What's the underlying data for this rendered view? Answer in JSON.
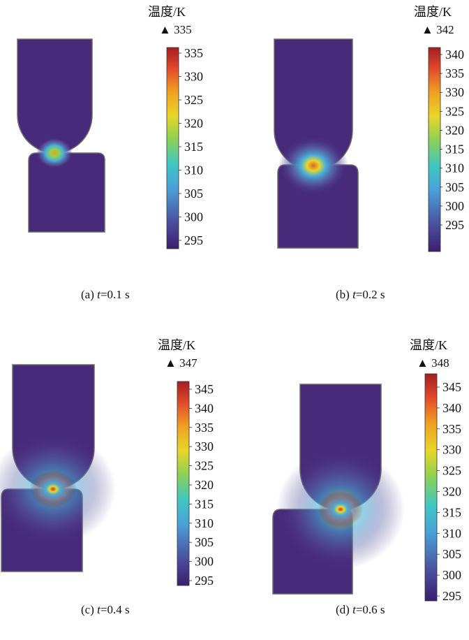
{
  "unit_label": "温度/K",
  "panels": [
    {
      "id": "a",
      "caption_prefix": "(a) ",
      "caption_var": "t",
      "caption_value": "=0.1 s",
      "max_marker": "▲ 335",
      "ticks": [
        "335",
        "330",
        "325",
        "320",
        "315",
        "310",
        "305",
        "300",
        "295"
      ]
    },
    {
      "id": "b",
      "caption_prefix": "(b) ",
      "caption_var": "t",
      "caption_value": "=0.2 s",
      "max_marker": "▲ 342",
      "ticks": [
        "340",
        "335",
        "330",
        "325",
        "320",
        "315",
        "310",
        "305",
        "300",
        "295"
      ]
    },
    {
      "id": "c",
      "caption_prefix": "(c) ",
      "caption_var": "t",
      "caption_value": "=0.4 s",
      "max_marker": "▲ 347",
      "ticks": [
        "345",
        "340",
        "335",
        "330",
        "325",
        "320",
        "315",
        "310",
        "305",
        "300",
        "295"
      ]
    },
    {
      "id": "d",
      "caption_prefix": "(d) ",
      "caption_var": "t",
      "caption_value": "=0.6 s",
      "max_marker": "▲ 348",
      "ticks": [
        "345",
        "340",
        "335",
        "330",
        "325",
        "320",
        "315",
        "310",
        "305",
        "300",
        "295"
      ]
    }
  ],
  "colors": {
    "cold": "#472b7a",
    "colormap": [
      "#3b1f6e",
      "#4a4a9a",
      "#4aa0d8",
      "#3ec7c2",
      "#8fd14f",
      "#e7d62a",
      "#f0a020",
      "#e0482a",
      "#a41e22"
    ]
  }
}
